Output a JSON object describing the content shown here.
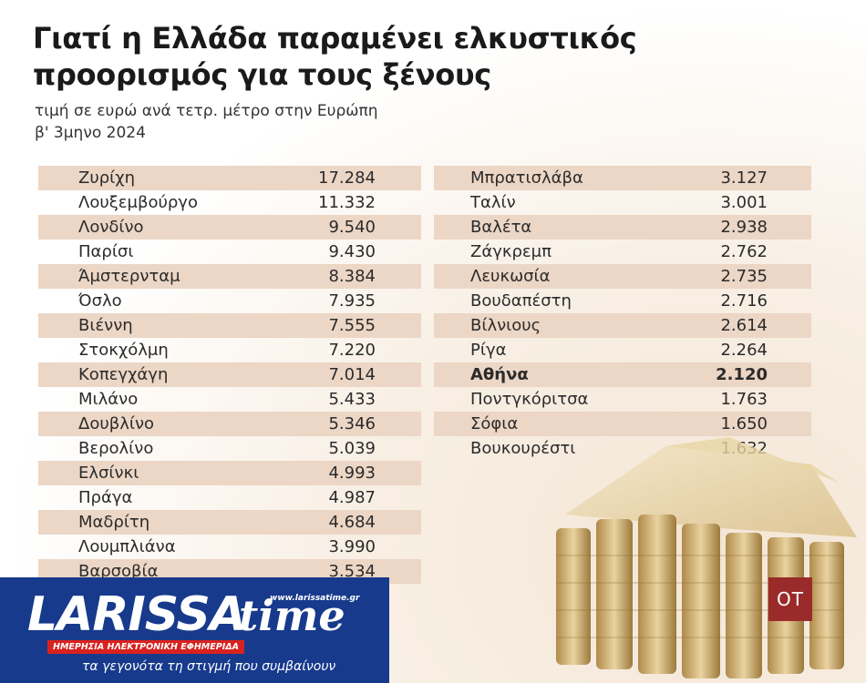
{
  "header": {
    "title": "Γιατί η Ελλάδα παραμένει ελκυστικός προορισμός για τους ξένους",
    "subtitle_line1": "τιμή σε ευρώ ανά τετρ. μέτρο στην Ευρώπη",
    "subtitle_line2": "β' 3μηνο 2024"
  },
  "chart_data": {
    "type": "table",
    "title": "Γιατί η Ελλάδα παραμένει ελκυστικός προορισμός για τους ξένους",
    "subtitle": "τιμή σε ευρώ ανά τετρ. μέτρο στην Ευρώπη β' 3μηνο 2024",
    "columns": [
      "city",
      "price"
    ],
    "highlight": "Αθήνα",
    "row_shading_color": "#ecd6c5",
    "left_rows": [
      {
        "city": "Ζυρίχη",
        "value": "17.284"
      },
      {
        "city": "Λουξεμβούργο",
        "value": "11.332"
      },
      {
        "city": "Λονδίνο",
        "value": "9.540"
      },
      {
        "city": "Παρίσι",
        "value": "9.430"
      },
      {
        "city": "Άμστερνταμ",
        "value": "8.384"
      },
      {
        "city": "Όσλο",
        "value": "7.935"
      },
      {
        "city": "Βιέννη",
        "value": "7.555"
      },
      {
        "city": "Στοκχόλμη",
        "value": "7.220"
      },
      {
        "city": "Κοπεγχάγη",
        "value": "7.014"
      },
      {
        "city": "Μιλάνο",
        "value": "5.433"
      },
      {
        "city": "Δουβλίνο",
        "value": "5.346"
      },
      {
        "city": "Βερολίνο",
        "value": "5.039"
      },
      {
        "city": "Ελσίνκι",
        "value": "4.993"
      },
      {
        "city": "Πράγα",
        "value": "4.987"
      },
      {
        "city": "Μαδρίτη",
        "value": "4.684"
      },
      {
        "city": "Λουμπλιάνα",
        "value": "3.990"
      },
      {
        "city": "Βαρσοβία",
        "value": "3.534"
      }
    ],
    "right_rows": [
      {
        "city": "Μπρατισλάβα",
        "value": "3.127"
      },
      {
        "city": "Ταλίν",
        "value": "3.001"
      },
      {
        "city": "Βαλέτα",
        "value": "2.938"
      },
      {
        "city": "Ζάγκρεμπ",
        "value": "2.762"
      },
      {
        "city": "Λευκωσία",
        "value": "2.735"
      },
      {
        "city": "Βουδαπέστη",
        "value": "2.716"
      },
      {
        "city": "Βίλνιους",
        "value": "2.614"
      },
      {
        "city": "Ρίγα",
        "value": "2.264"
      },
      {
        "city": "Αθήνα",
        "value": "2.120"
      },
      {
        "city": "Ποντγκόριτσα",
        "value": "1.763"
      },
      {
        "city": "Σόφια",
        "value": "1.650"
      },
      {
        "city": "Βουκουρέστι",
        "value": "1.632"
      }
    ]
  },
  "badge": {
    "text": "OT"
  },
  "logo": {
    "main": "LARISSA",
    "time": "time",
    "url": "www.larissatime.gr",
    "strap": "ΗΜΕΡΗΣΙΑ ΗΛΕΚΤΡΟΝΙΚΗ ΕΦΗΜΕΡΙΔΑ",
    "tagline": "τα γεγονότα τη στιγμή που συμβαίνουν"
  },
  "colors": {
    "title": "#1a1a1a",
    "shade": "#ecd6c5",
    "badge": "#9b2b2b",
    "logo_bg": "#173a8c",
    "logo_red": "#d8221f"
  }
}
